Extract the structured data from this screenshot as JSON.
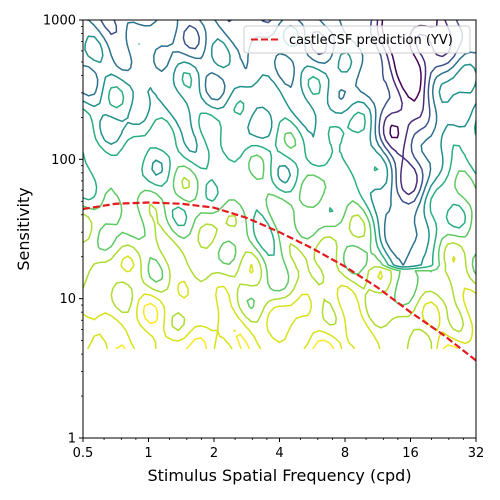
{
  "chart_data": {
    "type": "line",
    "xlabel": "Stimulus Spatial Frequency (cpd)",
    "ylabel": "Sensitivity",
    "x_scale": "log2",
    "y_scale": "log10",
    "xlim": [
      0.5,
      32
    ],
    "ylim": [
      1,
      1000
    ],
    "x_ticks": [
      0.5,
      1,
      2,
      4,
      8,
      16,
      32
    ],
    "x_tick_labels": [
      "0.5",
      "1",
      "2",
      "4",
      "8",
      "16",
      "32"
    ],
    "y_ticks": [
      1,
      10,
      100,
      1000
    ],
    "y_tick_labels": [
      "1",
      "10",
      "100",
      "1000"
    ],
    "grid": false,
    "legend_position": "top-right",
    "series": [
      {
        "name": "castleCSF prediction (YV)",
        "style": "dashed",
        "color": "#e41a1c",
        "x": [
          0.5,
          0.707,
          1,
          1.414,
          2,
          2.828,
          4,
          5.657,
          8,
          11.31,
          16,
          22.63,
          32
        ],
        "y": [
          44,
          48,
          49,
          48,
          45,
          38,
          30,
          23,
          17,
          12,
          8,
          5.5,
          3.6
        ]
      }
    ],
    "background_contours": {
      "type": "contour",
      "colormap": "viridis",
      "level_count": 10,
      "description_visible": false
    }
  },
  "colors": {
    "axes": "#000000",
    "background": "#ffffff"
  }
}
